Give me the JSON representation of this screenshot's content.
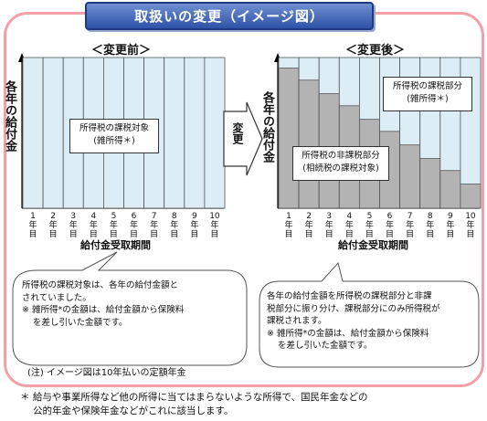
{
  "title": "取扱いの変更（イメージ図）",
  "before": {
    "heading": "＜変更前＞",
    "ylabel": "各年の給付金",
    "xlabel": "給付金受取期間",
    "box_line1": "所得税の課税対象",
    "box_line2": "(雑所得＊)"
  },
  "after": {
    "heading": "＜変更後＞",
    "ylabel": "各年の給付金",
    "xlabel": "給付金受取期間",
    "taxable_line1": "所得税の課税部分",
    "taxable_line2": "(雑所得＊)",
    "nontax_line1": "所得税の非課税部分",
    "nontax_line2": "(相続税の課税対象)"
  },
  "arrow_label": "変更",
  "years": [
    "1年目",
    "2年目",
    "3年目",
    "4年目",
    "5年目",
    "6年目",
    "7年目",
    "8年目",
    "9年目",
    "10年目"
  ],
  "chart_data": {
    "type": "bar",
    "categories": [
      "1年目",
      "2年目",
      "3年目",
      "4年目",
      "5年目",
      "6年目",
      "7年目",
      "8年目",
      "9年目",
      "10年目"
    ],
    "before_total": [
      1,
      1,
      1,
      1,
      1,
      1,
      1,
      1,
      1,
      1
    ],
    "after_nontaxable_fraction": [
      0.93,
      0.85,
      0.76,
      0.68,
      0.59,
      0.51,
      0.42,
      0.33,
      0.25,
      0.16
    ]
  },
  "bubble_left": {
    "line1": "所得税の課税対象は、各年の給付金額と",
    "line2": "されていました。",
    "line3": "※ 雑所得*の金額は、給付金額から保険料",
    "line4": "を差し引いた金額です。"
  },
  "bubble_right": {
    "line1": "各年の給付金額を所得税の課税部分と非課",
    "line2": "税部分に振り分け、課税部分にのみ所得税が",
    "line3": "課税されます。",
    "line4": "※ 雑所得*の金額は、給付金額から保険料",
    "line5": "を差し引いた金額です。"
  },
  "note": "(注)  イメージ図は10年払いの定額年金",
  "footnote": {
    "line1": "＊ 給与や事業所得など他の所得に当てはまらないような所得で、国民年金などの",
    "line2": "公的年金や保険年金などがこれに該当します。"
  },
  "colors": {
    "bar_fill": "#dcedf5",
    "nontax_fill": "#b3b3b3",
    "frame_border": "#f2a0a8",
    "banner": "#2e52a8"
  }
}
